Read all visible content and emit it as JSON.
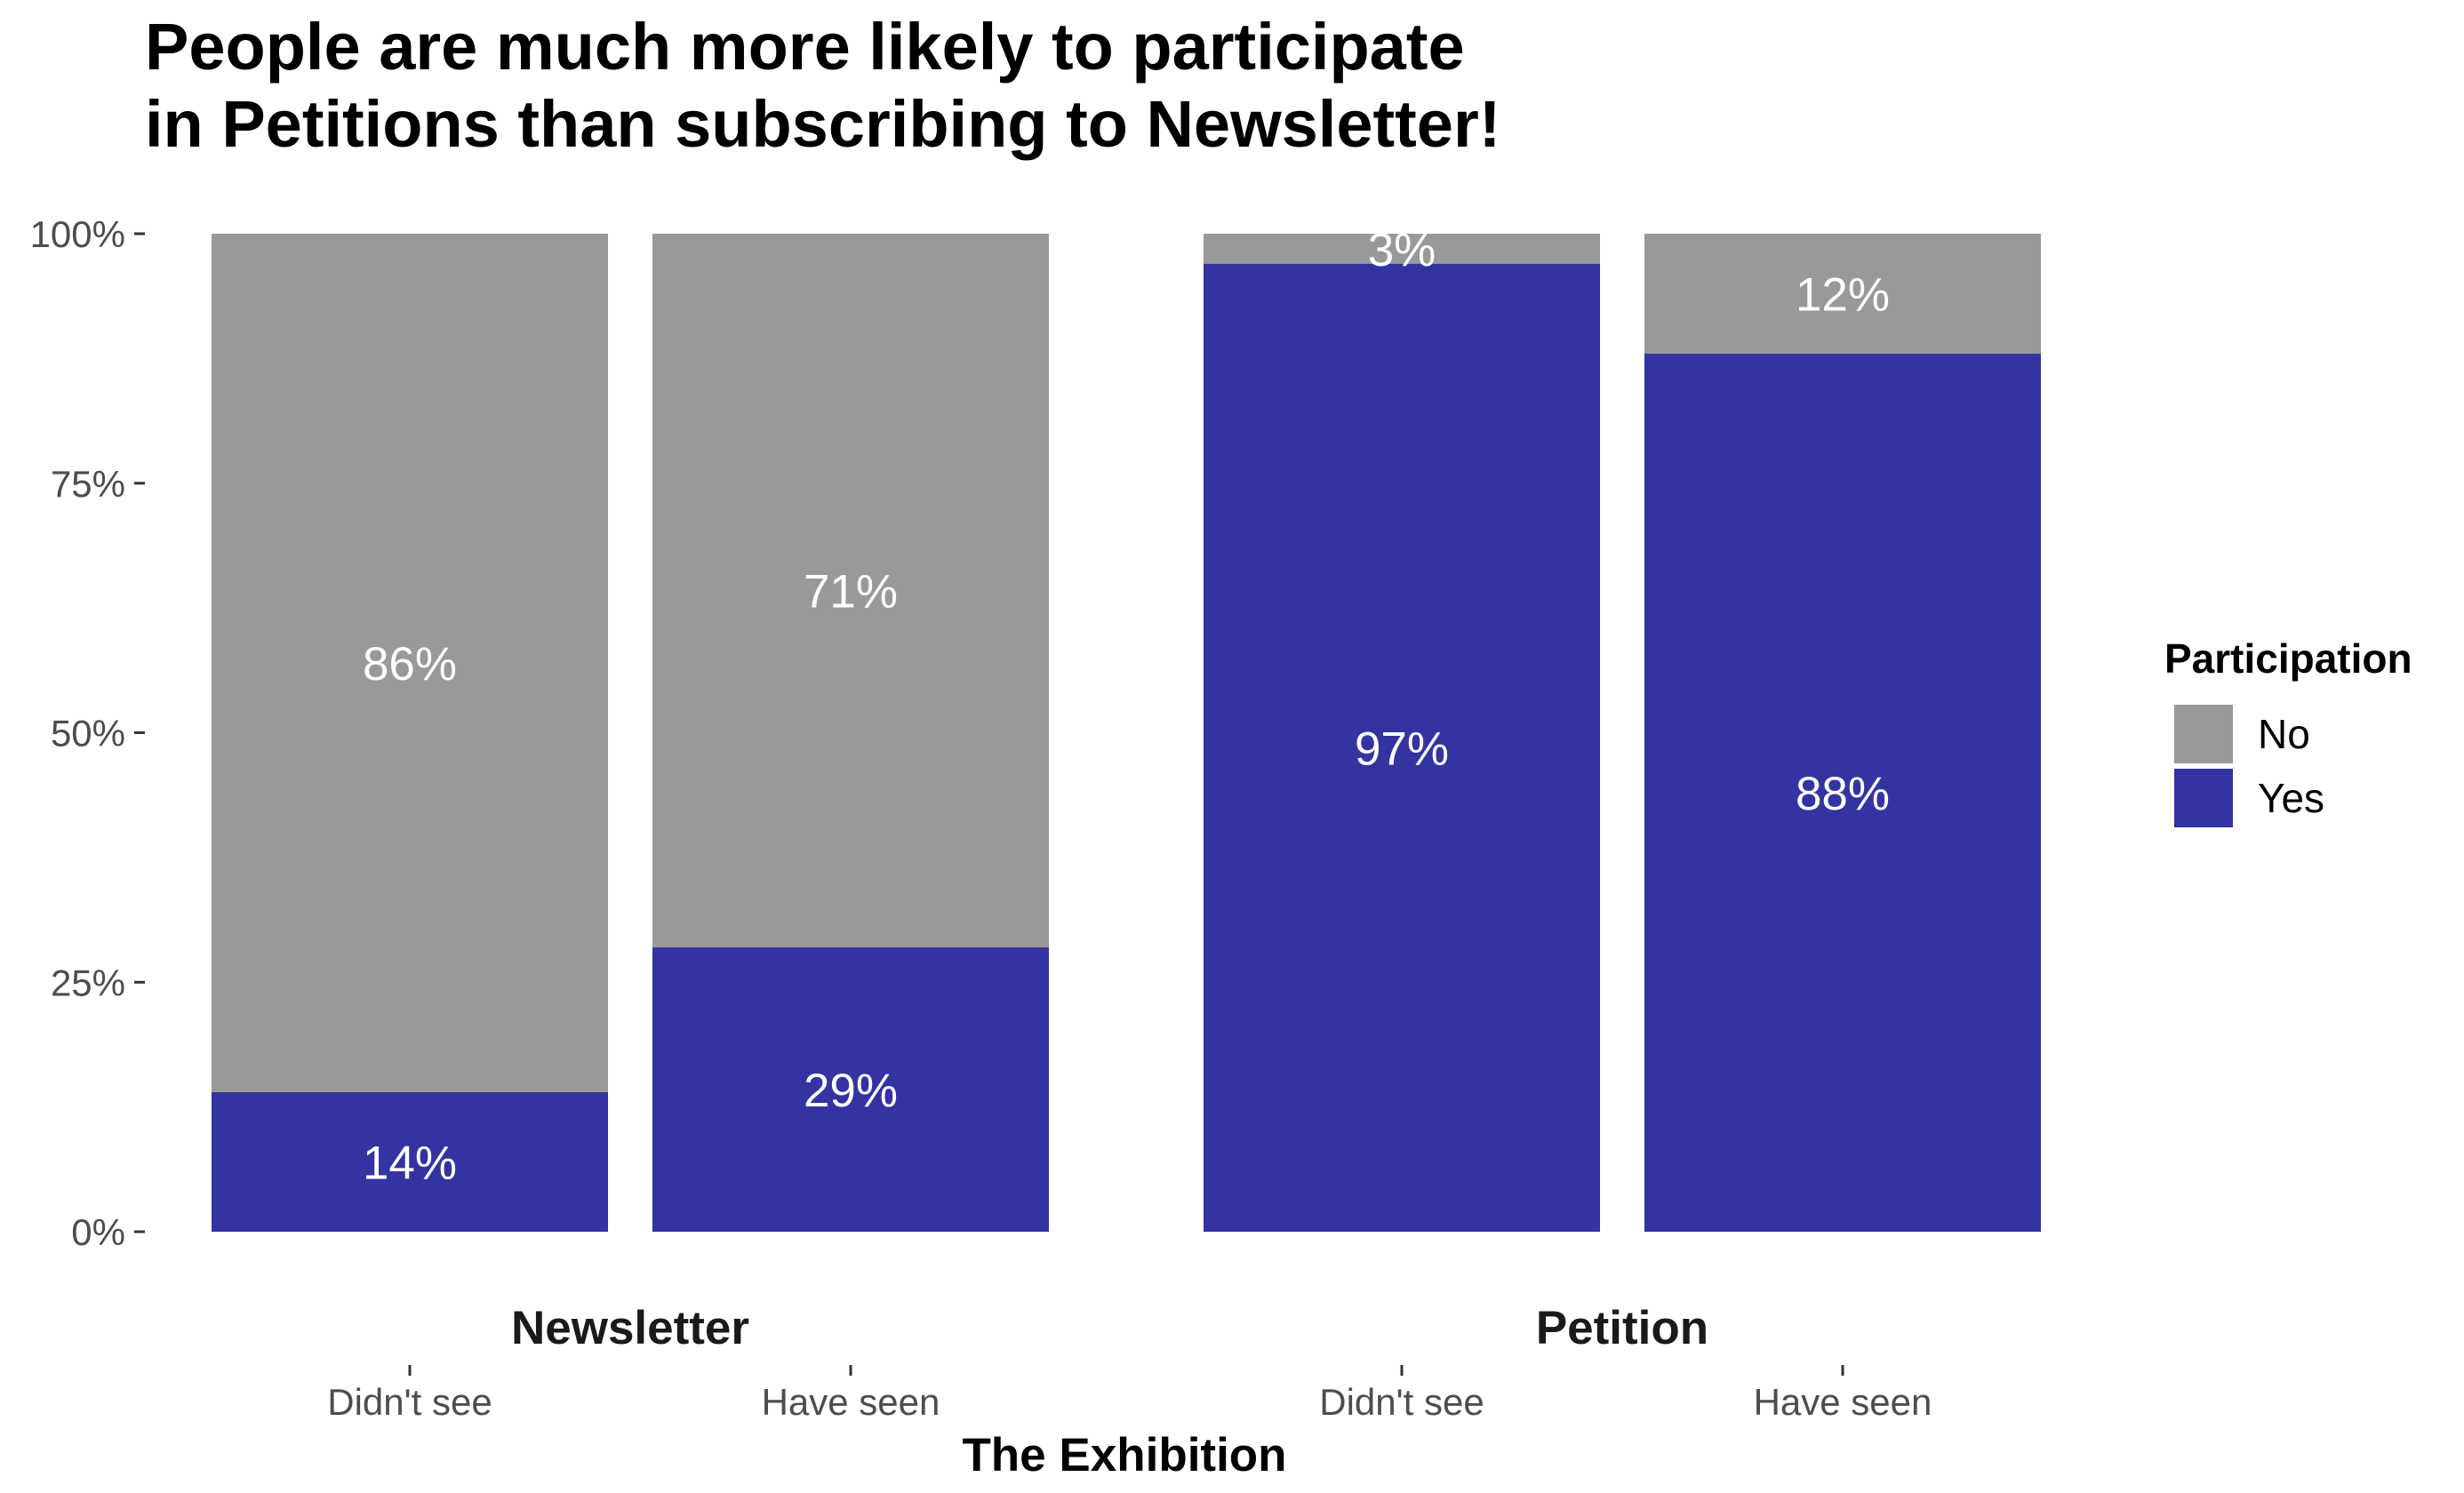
{
  "chart_data": {
    "type": "bar",
    "stacked": true,
    "title": [
      "People are much more likely to participate",
      "in Petitions than subscribing to Newsletter!"
    ],
    "xlabel": "The Exhibition",
    "ylabel": "",
    "ylim": [
      0,
      1
    ],
    "y_ticks": [
      {
        "value": 0,
        "label": "0%"
      },
      {
        "value": 0.25,
        "label": "25%"
      },
      {
        "value": 0.5,
        "label": "50%"
      },
      {
        "value": 0.75,
        "label": "75%"
      },
      {
        "value": 1,
        "label": "100%"
      }
    ],
    "grid": false,
    "legend": {
      "title": "Participation",
      "position": "right",
      "entries": [
        "No",
        "Yes"
      ]
    },
    "colors": {
      "No": "#999999",
      "Yes": "#3333A1"
    },
    "facets": [
      {
        "name": "Newsletter",
        "categories": [
          "Didn't see",
          "Have seen"
        ],
        "series": [
          {
            "name": "Yes",
            "values": [
              0.14,
              0.285
            ],
            "labels": [
              "14%",
              "29%"
            ]
          },
          {
            "name": "No",
            "values": [
              0.86,
              0.715
            ],
            "labels": [
              "86%",
              "71%"
            ]
          }
        ]
      },
      {
        "name": "Petition",
        "categories": [
          "Didn't see",
          "Have seen"
        ],
        "series": [
          {
            "name": "Yes",
            "values": [
              0.97,
              0.88
            ],
            "labels": [
              "97%",
              "88%"
            ]
          },
          {
            "name": "No",
            "values": [
              0.03,
              0.12
            ],
            "labels": [
              "3%",
              "12%"
            ]
          }
        ]
      }
    ]
  }
}
